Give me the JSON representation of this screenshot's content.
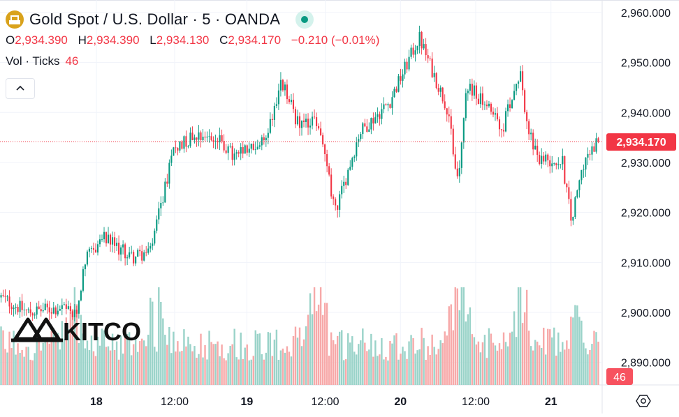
{
  "header": {
    "title": "Gold Spot / U.S. Dollar · 5 · OANDA",
    "ohlc": [
      {
        "label": "O",
        "value": "2,934.390"
      },
      {
        "label": "H",
        "value": "2,934.390"
      },
      {
        "label": "L",
        "value": "2,934.130"
      },
      {
        "label": "C",
        "value": "2,934.170"
      }
    ],
    "change": "−0.210 (−0.01%)",
    "volume_label": "Vol · Ticks",
    "volume_value": "46"
  },
  "icons": {
    "symbol": "gold-bars-icon",
    "status": "market-open-dot-icon",
    "collapse": "chevron-up-icon",
    "settings": "settings-hexagon-icon"
  },
  "colors": {
    "up": "#089981",
    "down": "#f23645",
    "up_volume": "#9ad3c9",
    "down_volume": "#f7a9a9",
    "grid": "#f0f3fa",
    "axis_text": "#131722"
  },
  "watermark": "KITCO",
  "chart_data": {
    "type": "candlestick",
    "y_axis": {
      "ticks": [
        "2,960.000",
        "2,950.000",
        "2,940.000",
        "2,930.000",
        "2,920.000",
        "2,910.000",
        "2,900.000",
        "2,890.000"
      ],
      "range": [
        2885.5,
        2962.5
      ]
    },
    "x_axis": {
      "ticks": [
        "18",
        "12:00",
        "19",
        "12:00",
        "20",
        "12:00",
        "21"
      ]
    },
    "last_price": "2,934.170",
    "last_volume": "46",
    "price_path": [
      {
        "t": 0,
        "p": 2903
      },
      {
        "t": 0.045,
        "p": 2900
      },
      {
        "t": 0.1,
        "p": 2901
      },
      {
        "t": 0.125,
        "p": 2899
      },
      {
        "t": 0.14,
        "p": 2910
      },
      {
        "t": 0.17,
        "p": 2915
      },
      {
        "t": 0.22,
        "p": 2911
      },
      {
        "t": 0.25,
        "p": 2912
      },
      {
        "t": 0.29,
        "p": 2933
      },
      {
        "t": 0.33,
        "p": 2936
      },
      {
        "t": 0.37,
        "p": 2934
      },
      {
        "t": 0.39,
        "p": 2931
      },
      {
        "t": 0.44,
        "p": 2934
      },
      {
        "t": 0.47,
        "p": 2946
      },
      {
        "t": 0.5,
        "p": 2937
      },
      {
        "t": 0.53,
        "p": 2938
      },
      {
        "t": 0.56,
        "p": 2920
      },
      {
        "t": 0.6,
        "p": 2936
      },
      {
        "t": 0.65,
        "p": 2942
      },
      {
        "t": 0.7,
        "p": 2955
      },
      {
        "t": 0.75,
        "p": 2940
      },
      {
        "t": 0.765,
        "p": 2925
      },
      {
        "t": 0.78,
        "p": 2946
      },
      {
        "t": 0.84,
        "p": 2937
      },
      {
        "t": 0.87,
        "p": 2949
      },
      {
        "t": 0.88,
        "p": 2937
      },
      {
        "t": 0.9,
        "p": 2931
      },
      {
        "t": 0.94,
        "p": 2930
      },
      {
        "t": 0.955,
        "p": 2918
      },
      {
        "t": 0.975,
        "p": 2930
      },
      {
        "t": 1.0,
        "p": 2934.17
      }
    ],
    "volume_spikes": [
      0.12,
      0.26,
      0.52,
      0.535,
      0.765,
      0.775,
      0.87,
      0.96
    ]
  }
}
